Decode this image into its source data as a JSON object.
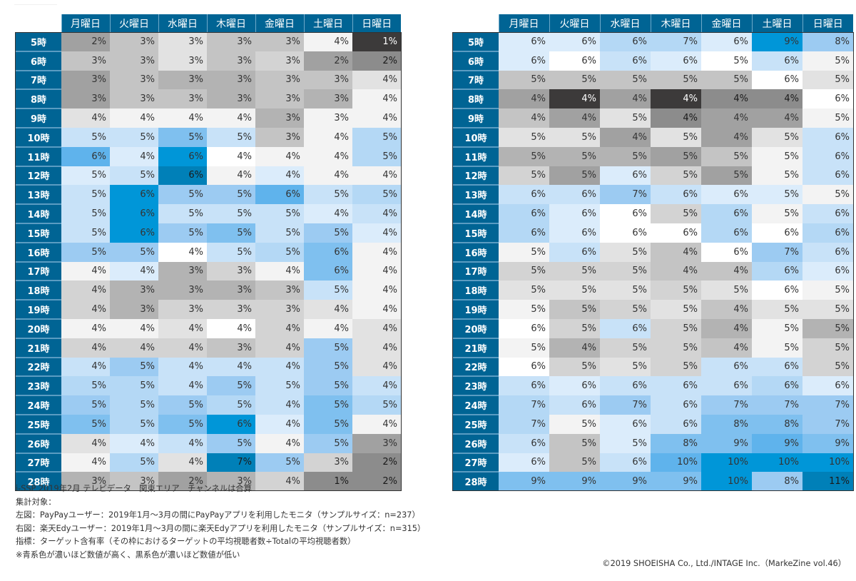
{
  "chart_data": [
    {
      "type": "heatmap",
      "name": "PayPay users",
      "columns": [
        "月曜日",
        "火曜日",
        "水曜日",
        "木曜日",
        "金曜日",
        "土曜日",
        "日曜日"
      ],
      "rows": [
        "5時",
        "6時",
        "7時",
        "8時",
        "9時",
        "10時",
        "11時",
        "12時",
        "13時",
        "14時",
        "15時",
        "16時",
        "17時",
        "18時",
        "19時",
        "20時",
        "21時",
        "22時",
        "23時",
        "24時",
        "25時",
        "26時",
        "27時",
        "28時"
      ],
      "values": [
        [
          2,
          3,
          3,
          3,
          3,
          4,
          1
        ],
        [
          3,
          3,
          3,
          3,
          3,
          2,
          2
        ],
        [
          3,
          3,
          3,
          3,
          3,
          3,
          4
        ],
        [
          3,
          3,
          3,
          3,
          3,
          3,
          4
        ],
        [
          4,
          4,
          4,
          4,
          3,
          3,
          4
        ],
        [
          5,
          5,
          5,
          5,
          3,
          4,
          5
        ],
        [
          6,
          4,
          6,
          4,
          4,
          4,
          5
        ],
        [
          5,
          5,
          6,
          4,
          4,
          4,
          4
        ],
        [
          5,
          6,
          5,
          5,
          6,
          5,
          5
        ],
        [
          5,
          6,
          5,
          5,
          5,
          4,
          4
        ],
        [
          5,
          6,
          5,
          5,
          5,
          5,
          4
        ],
        [
          5,
          5,
          4,
          5,
          5,
          6,
          4
        ],
        [
          4,
          4,
          3,
          3,
          4,
          6,
          4
        ],
        [
          4,
          3,
          3,
          3,
          3,
          5,
          4
        ],
        [
          4,
          3,
          3,
          3,
          3,
          4,
          4
        ],
        [
          4,
          4,
          4,
          4,
          4,
          4,
          4
        ],
        [
          4,
          4,
          4,
          3,
          4,
          5,
          4
        ],
        [
          4,
          5,
          4,
          4,
          4,
          5,
          4
        ],
        [
          5,
          5,
          4,
          5,
          5,
          5,
          4
        ],
        [
          5,
          5,
          5,
          5,
          4,
          5,
          5
        ],
        [
          5,
          5,
          5,
          6,
          4,
          5,
          4
        ],
        [
          4,
          4,
          4,
          5,
          4,
          5,
          3
        ],
        [
          4,
          5,
          4,
          7,
          5,
          3,
          2
        ],
        [
          3,
          3,
          2,
          3,
          4,
          1,
          2
        ]
      ],
      "shade": [
        [
          -6,
          -4,
          -2,
          -4,
          -4,
          -1,
          -9
        ],
        [
          -4,
          -4,
          -2,
          -4,
          -3,
          -6,
          -7
        ],
        [
          -6,
          -4,
          -5,
          -5,
          -4,
          -4,
          -2
        ],
        [
          -6,
          -4,
          -4,
          -5,
          -4,
          -5,
          -1
        ],
        [
          -2,
          -1,
          -1,
          -1,
          -5,
          -1,
          -1
        ],
        [
          2,
          2,
          5,
          2,
          -4,
          -1,
          3
        ],
        [
          6,
          1,
          7,
          0,
          -1,
          -1,
          3
        ],
        [
          1,
          2,
          8,
          -1,
          1,
          -1,
          -1
        ],
        [
          2,
          7,
          4,
          4,
          6,
          2,
          3
        ],
        [
          2,
          7,
          2,
          2,
          2,
          1,
          2
        ],
        [
          2,
          7,
          4,
          5,
          2,
          4,
          1
        ],
        [
          4,
          4,
          0,
          2,
          3,
          5,
          -1
        ],
        [
          -1,
          1,
          -5,
          -3,
          -1,
          5,
          -1
        ],
        [
          -3,
          -5,
          -5,
          -5,
          -4,
          2,
          -1
        ],
        [
          -3,
          -5,
          -3,
          -3,
          -3,
          -2,
          -1
        ],
        [
          -1,
          -1,
          -2,
          0,
          -3,
          -1,
          -2
        ],
        [
          -3,
          -3,
          -3,
          -4,
          -3,
          4,
          -2
        ],
        [
          2,
          4,
          2,
          2,
          2,
          4,
          -2
        ],
        [
          3,
          3,
          2,
          4,
          2,
          4,
          2
        ],
        [
          4,
          3,
          4,
          3,
          2,
          5,
          3
        ],
        [
          5,
          3,
          5,
          7,
          1,
          5,
          -1
        ],
        [
          -2,
          1,
          2,
          4,
          -1,
          4,
          -6
        ],
        [
          -1,
          3,
          -2,
          8,
          4,
          -3,
          -7
        ],
        [
          -5,
          -4,
          -6,
          -5,
          -3,
          -7,
          -7
        ]
      ],
      "unit": "%"
    },
    {
      "type": "heatmap",
      "name": "楽天Edy users",
      "columns": [
        "月曜日",
        "火曜日",
        "水曜日",
        "木曜日",
        "金曜日",
        "土曜日",
        "日曜日"
      ],
      "rows": [
        "5時",
        "6時",
        "7時",
        "8時",
        "9時",
        "10時",
        "11時",
        "12時",
        "13時",
        "14時",
        "15時",
        "16時",
        "17時",
        "18時",
        "19時",
        "20時",
        "21時",
        "22時",
        "23時",
        "24時",
        "25時",
        "26時",
        "27時",
        "28時"
      ],
      "values": [
        [
          6,
          6,
          6,
          7,
          6,
          9,
          8
        ],
        [
          6,
          6,
          6,
          6,
          5,
          6,
          5
        ],
        [
          5,
          5,
          5,
          5,
          5,
          6,
          5
        ],
        [
          4,
          4,
          4,
          4,
          4,
          4,
          6
        ],
        [
          4,
          4,
          5,
          4,
          4,
          4,
          5
        ],
        [
          5,
          5,
          4,
          5,
          4,
          5,
          6
        ],
        [
          5,
          5,
          5,
          5,
          5,
          5,
          6
        ],
        [
          5,
          5,
          6,
          5,
          5,
          5,
          6
        ],
        [
          6,
          6,
          7,
          6,
          6,
          5,
          5
        ],
        [
          6,
          6,
          6,
          5,
          6,
          5,
          6
        ],
        [
          6,
          6,
          6,
          6,
          6,
          6,
          6
        ],
        [
          5,
          6,
          5,
          4,
          6,
          7,
          6
        ],
        [
          5,
          5,
          5,
          4,
          4,
          6,
          6
        ],
        [
          5,
          5,
          5,
          5,
          5,
          6,
          5
        ],
        [
          5,
          5,
          5,
          5,
          4,
          5,
          5
        ],
        [
          6,
          5,
          6,
          5,
          4,
          5,
          5
        ],
        [
          5,
          4,
          5,
          5,
          4,
          5,
          5
        ],
        [
          6,
          5,
          5,
          5,
          6,
          6,
          5
        ],
        [
          6,
          6,
          6,
          6,
          6,
          6,
          6
        ],
        [
          7,
          6,
          7,
          6,
          7,
          7,
          7
        ],
        [
          7,
          5,
          6,
          6,
          8,
          8,
          7
        ],
        [
          6,
          5,
          5,
          8,
          9,
          9,
          9
        ],
        [
          6,
          5,
          6,
          10,
          10,
          10,
          10
        ],
        [
          9,
          9,
          9,
          9,
          10,
          8,
          11
        ]
      ],
      "shade": [
        [
          1,
          1,
          3,
          3,
          1,
          7,
          4
        ],
        [
          1,
          0,
          2,
          1,
          0,
          2,
          -1
        ],
        [
          -4,
          -4,
          -4,
          -4,
          -4,
          0,
          -2
        ],
        [
          -6,
          -9,
          -6,
          -9,
          -7,
          -7,
          0
        ],
        [
          -4,
          -6,
          -2,
          -7,
          -6,
          -6,
          -1
        ],
        [
          -2,
          -2,
          -6,
          -2,
          -6,
          -2,
          2
        ],
        [
          -5,
          -5,
          -5,
          -6,
          -4,
          -1,
          2
        ],
        [
          -3,
          -6,
          1,
          -3,
          -6,
          -1,
          2
        ],
        [
          2,
          2,
          4,
          2,
          1,
          1,
          -1
        ],
        [
          3,
          1,
          0,
          -3,
          3,
          -1,
          2
        ],
        [
          3,
          1,
          0,
          0,
          3,
          0,
          3
        ],
        [
          -1,
          2,
          -2,
          -4,
          0,
          4,
          2
        ],
        [
          -3,
          -3,
          -3,
          -4,
          -4,
          3,
          1
        ],
        [
          -2,
          -2,
          -2,
          -3,
          -2,
          0,
          -1
        ],
        [
          -1,
          -4,
          -3,
          -2,
          -4,
          -2,
          -2
        ],
        [
          0,
          -3,
          2,
          -3,
          -5,
          -1,
          -5
        ],
        [
          -1,
          -5,
          -3,
          -3,
          -4,
          -1,
          -3
        ],
        [
          0,
          -3,
          -2,
          -3,
          2,
          2,
          -3
        ],
        [
          2,
          1,
          2,
          2,
          2,
          3,
          1
        ],
        [
          3,
          2,
          4,
          2,
          4,
          4,
          4
        ],
        [
          3,
          -1,
          1,
          2,
          5,
          5,
          4
        ],
        [
          2,
          -4,
          1,
          5,
          5,
          6,
          5
        ],
        [
          1,
          -4,
          2,
          6,
          7,
          7,
          7
        ],
        [
          5,
          5,
          5,
          5,
          7,
          4,
          8
        ]
      ],
      "unit": "%"
    }
  ],
  "notes": [
    "i-SSP 2019年2月 テレビデータ　関東エリア　チャンネルは合算",
    "集計対象：",
    "左図：PayPayユーザー：2019年1月～3月の間にPayPayアプリを利用したモニタ（サンプルサイズ：n=237）",
    "右図：楽天Edyユーザー：2019年1月～3月の間に楽天Edyアプリを利用したモニタ（サンプルサイズ：n=315）",
    "指標：ターゲット含有率（その枠におけるターゲットの平均視聴者数÷Totalの平均視聴者数）",
    "※青系色が濃いほど数値が高く、黒系色が濃いほど数値が低い"
  ],
  "copyright": "©2019 SHOEISHA Co., Ltd./INTAGE Inc.（MarkeZine vol.46）",
  "colors": {
    "header_bg": "#006494",
    "blue_scale": [
      "#ffffff",
      "#dbecfb",
      "#c8e2f8",
      "#b4d8f5",
      "#9ccbf2",
      "#7fc0ef",
      "#5fb3ec",
      "#0096d8",
      "#0080b8"
    ],
    "gray_scale": [
      "#ffffff",
      "#f3f3f3",
      "#e2e2e2",
      "#d3d3d3",
      "#c4c4c4",
      "#b3b3b3",
      "#a1a1a1",
      "#8c8c8c",
      "#747474",
      "#3c3a3a"
    ]
  }
}
